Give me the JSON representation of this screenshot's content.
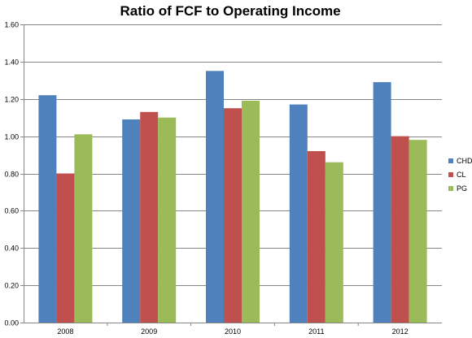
{
  "chart_data": {
    "type": "bar",
    "title": "Ratio of FCF to Operating Income",
    "xlabel": "",
    "ylabel": "",
    "categories": [
      "2008",
      "2009",
      "2010",
      "2011",
      "2012"
    ],
    "series": [
      {
        "name": "CHD",
        "color": "#4F81BD",
        "values": [
          1.22,
          1.09,
          1.35,
          1.17,
          1.29
        ]
      },
      {
        "name": "CL",
        "color": "#C0504D",
        "values": [
          0.8,
          1.13,
          1.15,
          0.92,
          1.0
        ]
      },
      {
        "name": "PG",
        "color": "#9BBB59",
        "values": [
          1.01,
          1.1,
          1.19,
          0.86,
          0.98
        ]
      }
    ],
    "ylim": [
      0,
      1.6
    ],
    "yticks": [
      "0.00",
      "0.20",
      "0.40",
      "0.60",
      "0.80",
      "1.00",
      "1.20",
      "1.40",
      "1.60"
    ],
    "grid": true,
    "legend_position": "right"
  }
}
